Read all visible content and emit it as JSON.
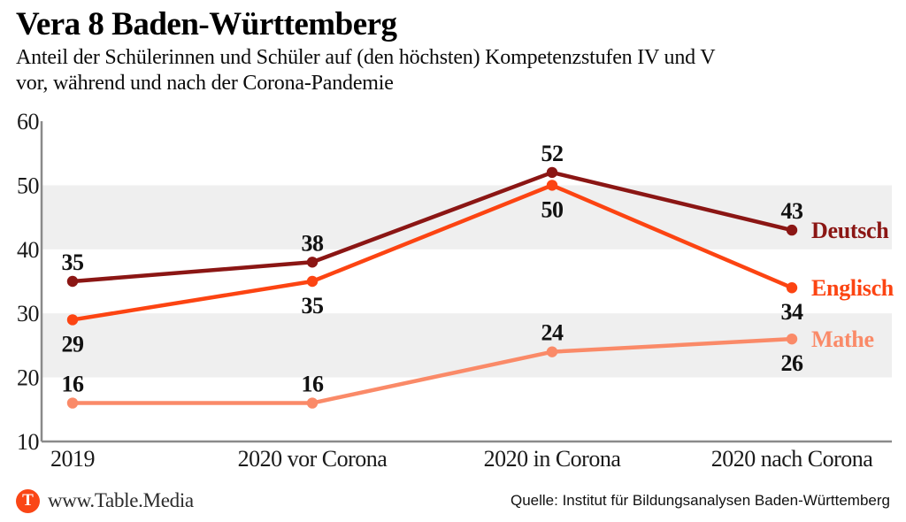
{
  "header": {
    "title": "Vera 8 Baden-Württemberg",
    "subtitle_line1": "Anteil der Schülerinnen und Schüler auf (den höchsten) Kompetenzstufen IV und V",
    "subtitle_line2": "vor, während und nach der Corona-Pandemie"
  },
  "chart_data": {
    "type": "line",
    "title": "Vera 8 Baden-Württemberg",
    "subtitle": "Anteil der Schülerinnen und Schüler auf (den höchsten) Kompetenzstufen IV und V vor, während und nach der Corona-Pandemie",
    "categories": [
      "2019",
      "2020 vor Corona",
      "2020 in Corona",
      "2020 nach Corona"
    ],
    "series": [
      {
        "name": "Deutsch",
        "color": "#8b1614",
        "values": [
          35,
          38,
          52,
          43
        ],
        "label_positions": [
          "above",
          "above",
          "above",
          "above"
        ]
      },
      {
        "name": "Englisch",
        "color": "#fc4412",
        "values": [
          29,
          35,
          50,
          34
        ],
        "label_positions": [
          "below",
          "below",
          "below",
          "below"
        ]
      },
      {
        "name": "Mathe",
        "color": "#fa8a68",
        "values": [
          16,
          16,
          24,
          26
        ],
        "label_positions": [
          "above",
          "above",
          "above",
          "below"
        ]
      }
    ],
    "xlabel": "",
    "ylabel": "",
    "ylim": [
      10,
      60
    ],
    "yticks": [
      10,
      20,
      30,
      40,
      50,
      60
    ],
    "bands": [
      [
        40,
        50
      ],
      [
        20,
        30
      ]
    ],
    "band_color": "#efefef",
    "axis_color": "#8a8a8a",
    "grid": false,
    "legend_position": "right-of-last-point"
  },
  "footer": {
    "logo_letter": "T",
    "logo_color": "#fa4616",
    "site": "www.Table.Media",
    "source": "Quelle: Institut für Bildungsanalysen Baden-Württemberg"
  }
}
